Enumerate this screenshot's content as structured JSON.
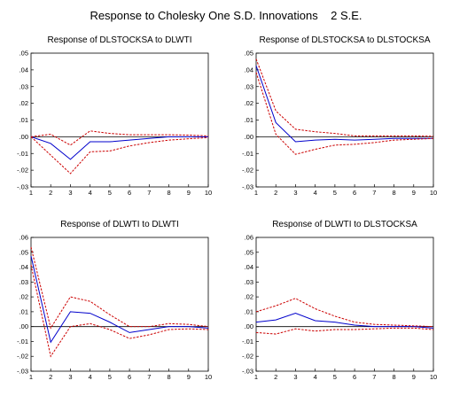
{
  "title": "Response to Cholesky One S.D. Innovations    2 S.E.",
  "chart_data": [
    {
      "type": "line",
      "title": "Response of DLSTOCKSA to DLWTI",
      "x": [
        1,
        2,
        3,
        4,
        5,
        6,
        7,
        8,
        9,
        10
      ],
      "xlim": [
        1,
        10
      ],
      "ylim": [
        -0.03,
        0.05
      ],
      "yticks": [
        ".05",
        ".04",
        ".03",
        ".02",
        ".01",
        ".00",
        "-.01",
        "-.02",
        "-.03"
      ],
      "xticks": [
        "1",
        "2",
        "3",
        "4",
        "5",
        "6",
        "7",
        "8",
        "9",
        "10"
      ],
      "series": [
        {
          "role": "response",
          "color": "#0000cc",
          "values": [
            0.0,
            -0.004,
            -0.0135,
            -0.003,
            -0.003,
            -0.002,
            -0.001,
            0.0,
            0.0,
            0.0
          ]
        },
        {
          "role": "upper",
          "color": "#cc0000",
          "values": [
            0.0,
            0.0015,
            -0.005,
            0.0035,
            0.002,
            0.0012,
            0.0012,
            0.0012,
            0.001,
            0.0005
          ]
        },
        {
          "role": "lower",
          "color": "#cc0000",
          "values": [
            0.0,
            -0.011,
            -0.022,
            -0.009,
            -0.0085,
            -0.0055,
            -0.0035,
            -0.002,
            -0.0012,
            -0.0005
          ]
        }
      ]
    },
    {
      "type": "line",
      "title": "Response of DLSTOCKSA to DLSTOCKSA",
      "x": [
        1,
        2,
        3,
        4,
        5,
        6,
        7,
        8,
        9,
        10
      ],
      "xlim": [
        1,
        10
      ],
      "ylim": [
        -0.03,
        0.05
      ],
      "yticks": [
        ".05",
        ".04",
        ".03",
        ".02",
        ".01",
        ".00",
        "-.01",
        "-.02",
        "-.03"
      ],
      "xticks": [
        "1",
        "2",
        "3",
        "4",
        "5",
        "6",
        "7",
        "8",
        "9",
        "10"
      ],
      "series": [
        {
          "role": "response",
          "color": "#0000cc",
          "values": [
            0.0425,
            0.0085,
            -0.003,
            -0.002,
            -0.0015,
            -0.002,
            -0.0015,
            -0.001,
            -0.001,
            -0.001
          ]
        },
        {
          "role": "upper",
          "color": "#cc0000",
          "values": [
            0.0465,
            0.0155,
            0.0045,
            0.003,
            0.002,
            0.0005,
            0.0005,
            0.0005,
            0.0005,
            0.0003
          ]
        },
        {
          "role": "lower",
          "color": "#cc0000",
          "values": [
            0.0385,
            0.0015,
            -0.0105,
            -0.0075,
            -0.005,
            -0.0045,
            -0.0035,
            -0.002,
            -0.0015,
            -0.001
          ]
        }
      ]
    },
    {
      "type": "line",
      "title": "Response of DLWTI to DLWTI",
      "x": [
        1,
        2,
        3,
        4,
        5,
        6,
        7,
        8,
        9,
        10
      ],
      "xlim": [
        1,
        10
      ],
      "ylim": [
        -0.03,
        0.06
      ],
      "yticks": [
        ".06",
        ".05",
        ".04",
        ".03",
        ".02",
        ".01",
        ".00",
        "-.01",
        "-.02",
        "-.03"
      ],
      "xticks": [
        "1",
        "2",
        "3",
        "4",
        "5",
        "6",
        "7",
        "8",
        "9",
        "10"
      ],
      "series": [
        {
          "role": "response",
          "color": "#0000cc",
          "values": [
            0.0475,
            -0.0105,
            0.01,
            0.009,
            0.003,
            -0.004,
            -0.002,
            0.0,
            0.0,
            -0.001
          ]
        },
        {
          "role": "upper",
          "color": "#cc0000",
          "values": [
            0.0535,
            -0.001,
            0.02,
            0.017,
            0.008,
            0.0,
            0.0,
            0.002,
            0.0015,
            0.0
          ]
        },
        {
          "role": "lower",
          "color": "#cc0000",
          "values": [
            0.0415,
            -0.02,
            0.0,
            0.002,
            -0.002,
            -0.008,
            -0.0055,
            -0.002,
            -0.0015,
            -0.002
          ]
        }
      ]
    },
    {
      "type": "line",
      "title": "Response of DLWTI to DLSTOCKSA",
      "x": [
        1,
        2,
        3,
        4,
        5,
        6,
        7,
        8,
        9,
        10
      ],
      "xlim": [
        1,
        10
      ],
      "ylim": [
        -0.03,
        0.06
      ],
      "yticks": [
        ".06",
        ".05",
        ".04",
        ".03",
        ".02",
        ".01",
        ".00",
        "-.01",
        "-.02",
        "-.03"
      ],
      "xticks": [
        "1",
        "2",
        "3",
        "4",
        "5",
        "6",
        "7",
        "8",
        "9",
        "10"
      ],
      "series": [
        {
          "role": "response",
          "color": "#0000cc",
          "values": [
            0.003,
            0.0045,
            0.009,
            0.004,
            0.003,
            0.001,
            0.0,
            0.0,
            0.0,
            -0.001
          ]
        },
        {
          "role": "upper",
          "color": "#cc0000",
          "values": [
            0.01,
            0.014,
            0.019,
            0.012,
            0.007,
            0.003,
            0.0015,
            0.001,
            0.0005,
            0.0
          ]
        },
        {
          "role": "lower",
          "color": "#cc0000",
          "values": [
            -0.004,
            -0.005,
            -0.0015,
            -0.003,
            -0.002,
            -0.002,
            -0.0015,
            -0.001,
            -0.001,
            -0.002
          ]
        }
      ]
    }
  ]
}
